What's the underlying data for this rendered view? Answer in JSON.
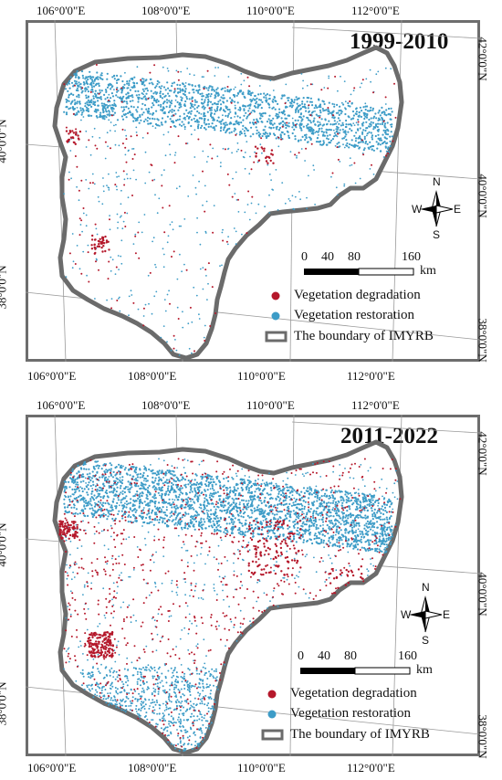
{
  "panels": [
    {
      "period": "1999-2010",
      "lon_labels": [
        "106°0'0\"E",
        "108°0'0\"E",
        "110°0'0\"E",
        "112°0'0\"E"
      ],
      "lat_labels_left": [
        "40°0'0\"N",
        "38°0'0\"N"
      ],
      "lat_labels_right": [
        "42°0'0\"N",
        "40°0'0\"N",
        "38°0'0\"N"
      ]
    },
    {
      "period": "2011-2022",
      "lon_labels": [
        "106°0'0\"E",
        "108°0'0\"E",
        "110°0'0\"E",
        "112°0'0\"E"
      ],
      "lat_labels_left": [
        "40°0'0\"N",
        "38°0'0\"N"
      ],
      "lat_labels_right": [
        "42°0'0\"N",
        "40°0'0\"N",
        "38°0'0\"N"
      ]
    }
  ],
  "compass": {
    "n": "N",
    "s": "S",
    "e": "E",
    "w": "W"
  },
  "scale": {
    "ticks": [
      "0",
      "40",
      "80",
      "160"
    ],
    "unit": "km"
  },
  "legend": {
    "degradation": "Vegetation degradation",
    "restoration": "Vegetation restoration",
    "boundary": "The boundary of IMYRB"
  },
  "colors": {
    "degradation": "#b5182b",
    "restoration": "#3d9cc7",
    "boundary": "#6b6b6b",
    "frame": "#6d6d6d"
  }
}
